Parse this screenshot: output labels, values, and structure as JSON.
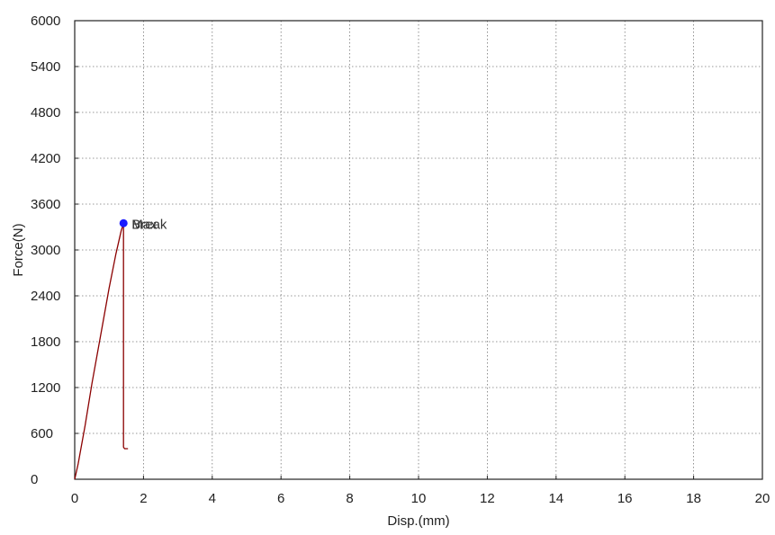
{
  "chart_data": {
    "type": "line",
    "title": "",
    "xlabel": "Disp.(mm)",
    "ylabel": "Force(N)",
    "xlim": [
      0,
      20
    ],
    "ylim": [
      0,
      6000
    ],
    "x_ticks": [
      0,
      2,
      4,
      6,
      8,
      10,
      12,
      14,
      16,
      18,
      20
    ],
    "x_tick_labels": [
      "0",
      "2",
      "4",
      "6",
      "8",
      "10",
      "12",
      "14",
      "16",
      "18",
      "20"
    ],
    "y_ticks": [
      0,
      600,
      1200,
      1800,
      2400,
      3000,
      3600,
      4200,
      4800,
      5400,
      6000
    ],
    "y_tick_labels": [
      "0",
      "600",
      "1200",
      "1800",
      "2400",
      "3000",
      "3600",
      "4200",
      "4800",
      "5400",
      "6000"
    ],
    "grid": true,
    "series": [
      {
        "color": "#8b0000",
        "x": [
          0,
          0.1,
          0.3,
          0.5,
          0.8,
          1.0,
          1.2,
          1.35,
          1.42,
          1.42,
          1.45,
          1.55
        ],
        "y": [
          0,
          200,
          700,
          1250,
          2000,
          2500,
          2950,
          3250,
          3350,
          420,
          400,
          400
        ]
      }
    ],
    "annotations": [
      {
        "label": "Max",
        "x": 1.42,
        "y": 3350,
        "marker_color": "#1a1aff"
      },
      {
        "label": "Break",
        "x": 1.42,
        "y": 3350
      }
    ]
  }
}
